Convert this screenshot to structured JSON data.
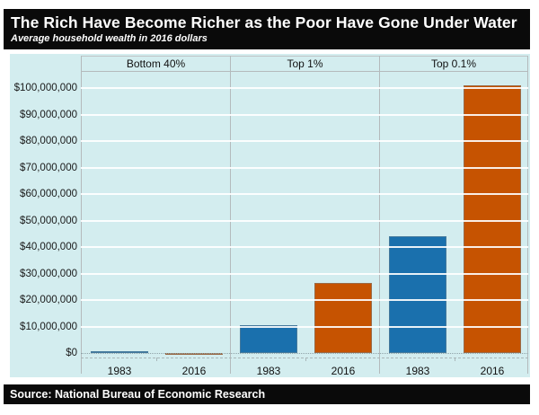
{
  "header": {
    "title": "The Rich Have Become Richer as the Poor Have Gone Under Water",
    "subtitle": "Average household wealth in 2016 dollars"
  },
  "footer": {
    "source_label": "Source: National Bureau of Economic Research"
  },
  "chart_data": {
    "type": "bar",
    "title": "The Rich Have Become Richer as the Poor Have Gone Under Water",
    "subtitle": "Average household wealth in 2016 dollars",
    "source": "Source: National Bureau of Economic Research",
    "unit": "US dollars (2016 dollars), average household wealth",
    "categories": [
      "1983",
      "2016"
    ],
    "panels": [
      {
        "label": "Bottom 40%",
        "bars": [
          {
            "year": "1983",
            "value": 7000
          },
          {
            "year": "2016",
            "value": -9000
          }
        ]
      },
      {
        "label": "Top 1%",
        "bars": [
          {
            "year": "1983",
            "value": 10500000
          },
          {
            "year": "2016",
            "value": 26500000
          }
        ]
      },
      {
        "label": "Top 0.1%",
        "bars": [
          {
            "year": "1983",
            "value": 44000000
          },
          {
            "year": "2016",
            "value": 101000000
          }
        ]
      }
    ],
    "series_colors": {
      "1983": "#1a70ad",
      "2016": "#c65301"
    },
    "yticks": [
      0,
      10000000,
      20000000,
      30000000,
      40000000,
      50000000,
      60000000,
      70000000,
      80000000,
      90000000,
      100000000
    ],
    "ytick_labels": [
      "$0",
      "$10,000,000",
      "$20,000,000",
      "$30,000,000",
      "$40,000,000",
      "$50,000,000",
      "$60,000,000",
      "$70,000,000",
      "$80,000,000",
      "$90,000,000",
      "$100,000,000"
    ],
    "ylim": [
      -2000000,
      105500000
    ],
    "grid": true,
    "legend": "none"
  },
  "colors": {
    "plot_bg": "#d3edef",
    "gridline": "#ffffff",
    "separator": "#b4babc",
    "bar_1983": "#1a70ad",
    "bar_2016": "#c65301",
    "header_bg": "#0a0a0a",
    "text": "#1a1a1a"
  }
}
